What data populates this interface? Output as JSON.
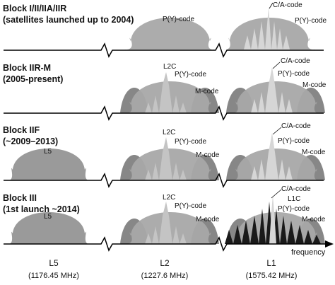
{
  "blocks": [
    {
      "title": "Block I/II/IIA/IIR",
      "subtitle": "(satellites launched up to 2004)"
    },
    {
      "title": "Block IIR-M",
      "subtitle": "(2005-present)"
    },
    {
      "title": "Block IIF",
      "subtitle": "(~2009–2013)"
    },
    {
      "title": "Block III",
      "subtitle": "(1st launch ~2014)"
    }
  ],
  "signal_labels": {
    "pcode": "P(Y)-code",
    "ca": "C/A-code",
    "l2c": "L2C",
    "mcode": "M-code",
    "l5": "L5",
    "l1c": "L1C"
  },
  "bands": [
    {
      "name": "L5",
      "freq": "(1176.45 MHz)"
    },
    {
      "name": "L2",
      "freq": "(1227.6 MHz)"
    },
    {
      "name": "L1",
      "freq": "(1575.42 MHz)"
    }
  ],
  "axis_label": "frequency",
  "colors": {
    "l5": "#9a9a9a",
    "pcode": "#a8a8a8",
    "mcode": "#7a7a7a",
    "l2c": "#c4c4c4",
    "ca": "#d6d6d6",
    "l1c": "#1a1a1a",
    "axis": "#000000"
  }
}
